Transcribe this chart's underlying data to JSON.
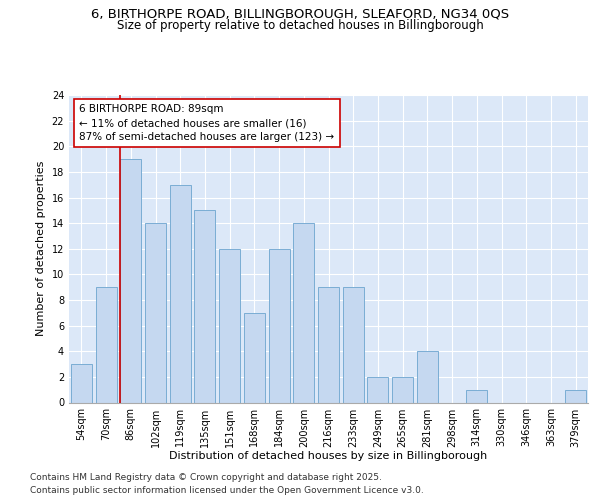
{
  "title_line1": "6, BIRTHORPE ROAD, BILLINGBOROUGH, SLEAFORD, NG34 0QS",
  "title_line2": "Size of property relative to detached houses in Billingborough",
  "xlabel": "Distribution of detached houses by size in Billingborough",
  "ylabel": "Number of detached properties",
  "categories": [
    "54sqm",
    "70sqm",
    "86sqm",
    "102sqm",
    "119sqm",
    "135sqm",
    "151sqm",
    "168sqm",
    "184sqm",
    "200sqm",
    "216sqm",
    "233sqm",
    "249sqm",
    "265sqm",
    "281sqm",
    "298sqm",
    "314sqm",
    "330sqm",
    "346sqm",
    "363sqm",
    "379sqm"
  ],
  "values": [
    3,
    9,
    19,
    14,
    17,
    15,
    12,
    7,
    12,
    14,
    9,
    9,
    2,
    2,
    4,
    0,
    1,
    0,
    0,
    0,
    1
  ],
  "bar_color": "#c5d8f0",
  "bar_edge_color": "#7aadd4",
  "subject_bar_index": 2,
  "annotation_line1": "6 BIRTHORPE ROAD: 89sqm",
  "annotation_line2": "← 11% of detached houses are smaller (16)",
  "annotation_line3": "87% of semi-detached houses are larger (123) →",
  "annotation_box_color": "#ffffff",
  "annotation_box_edge": "#cc0000",
  "subject_line_color": "#cc0000",
  "ylim": [
    0,
    24
  ],
  "yticks": [
    0,
    2,
    4,
    6,
    8,
    10,
    12,
    14,
    16,
    18,
    20,
    22,
    24
  ],
  "background_color": "#dce8f8",
  "grid_color": "#ffffff",
  "footer_text": "Contains HM Land Registry data © Crown copyright and database right 2025.\nContains public sector information licensed under the Open Government Licence v3.0.",
  "title1_fontsize": 9.5,
  "title2_fontsize": 8.5,
  "tick_fontsize": 7,
  "ylabel_fontsize": 8,
  "xlabel_fontsize": 8,
  "footer_fontsize": 6.5,
  "annot_fontsize": 7.5
}
